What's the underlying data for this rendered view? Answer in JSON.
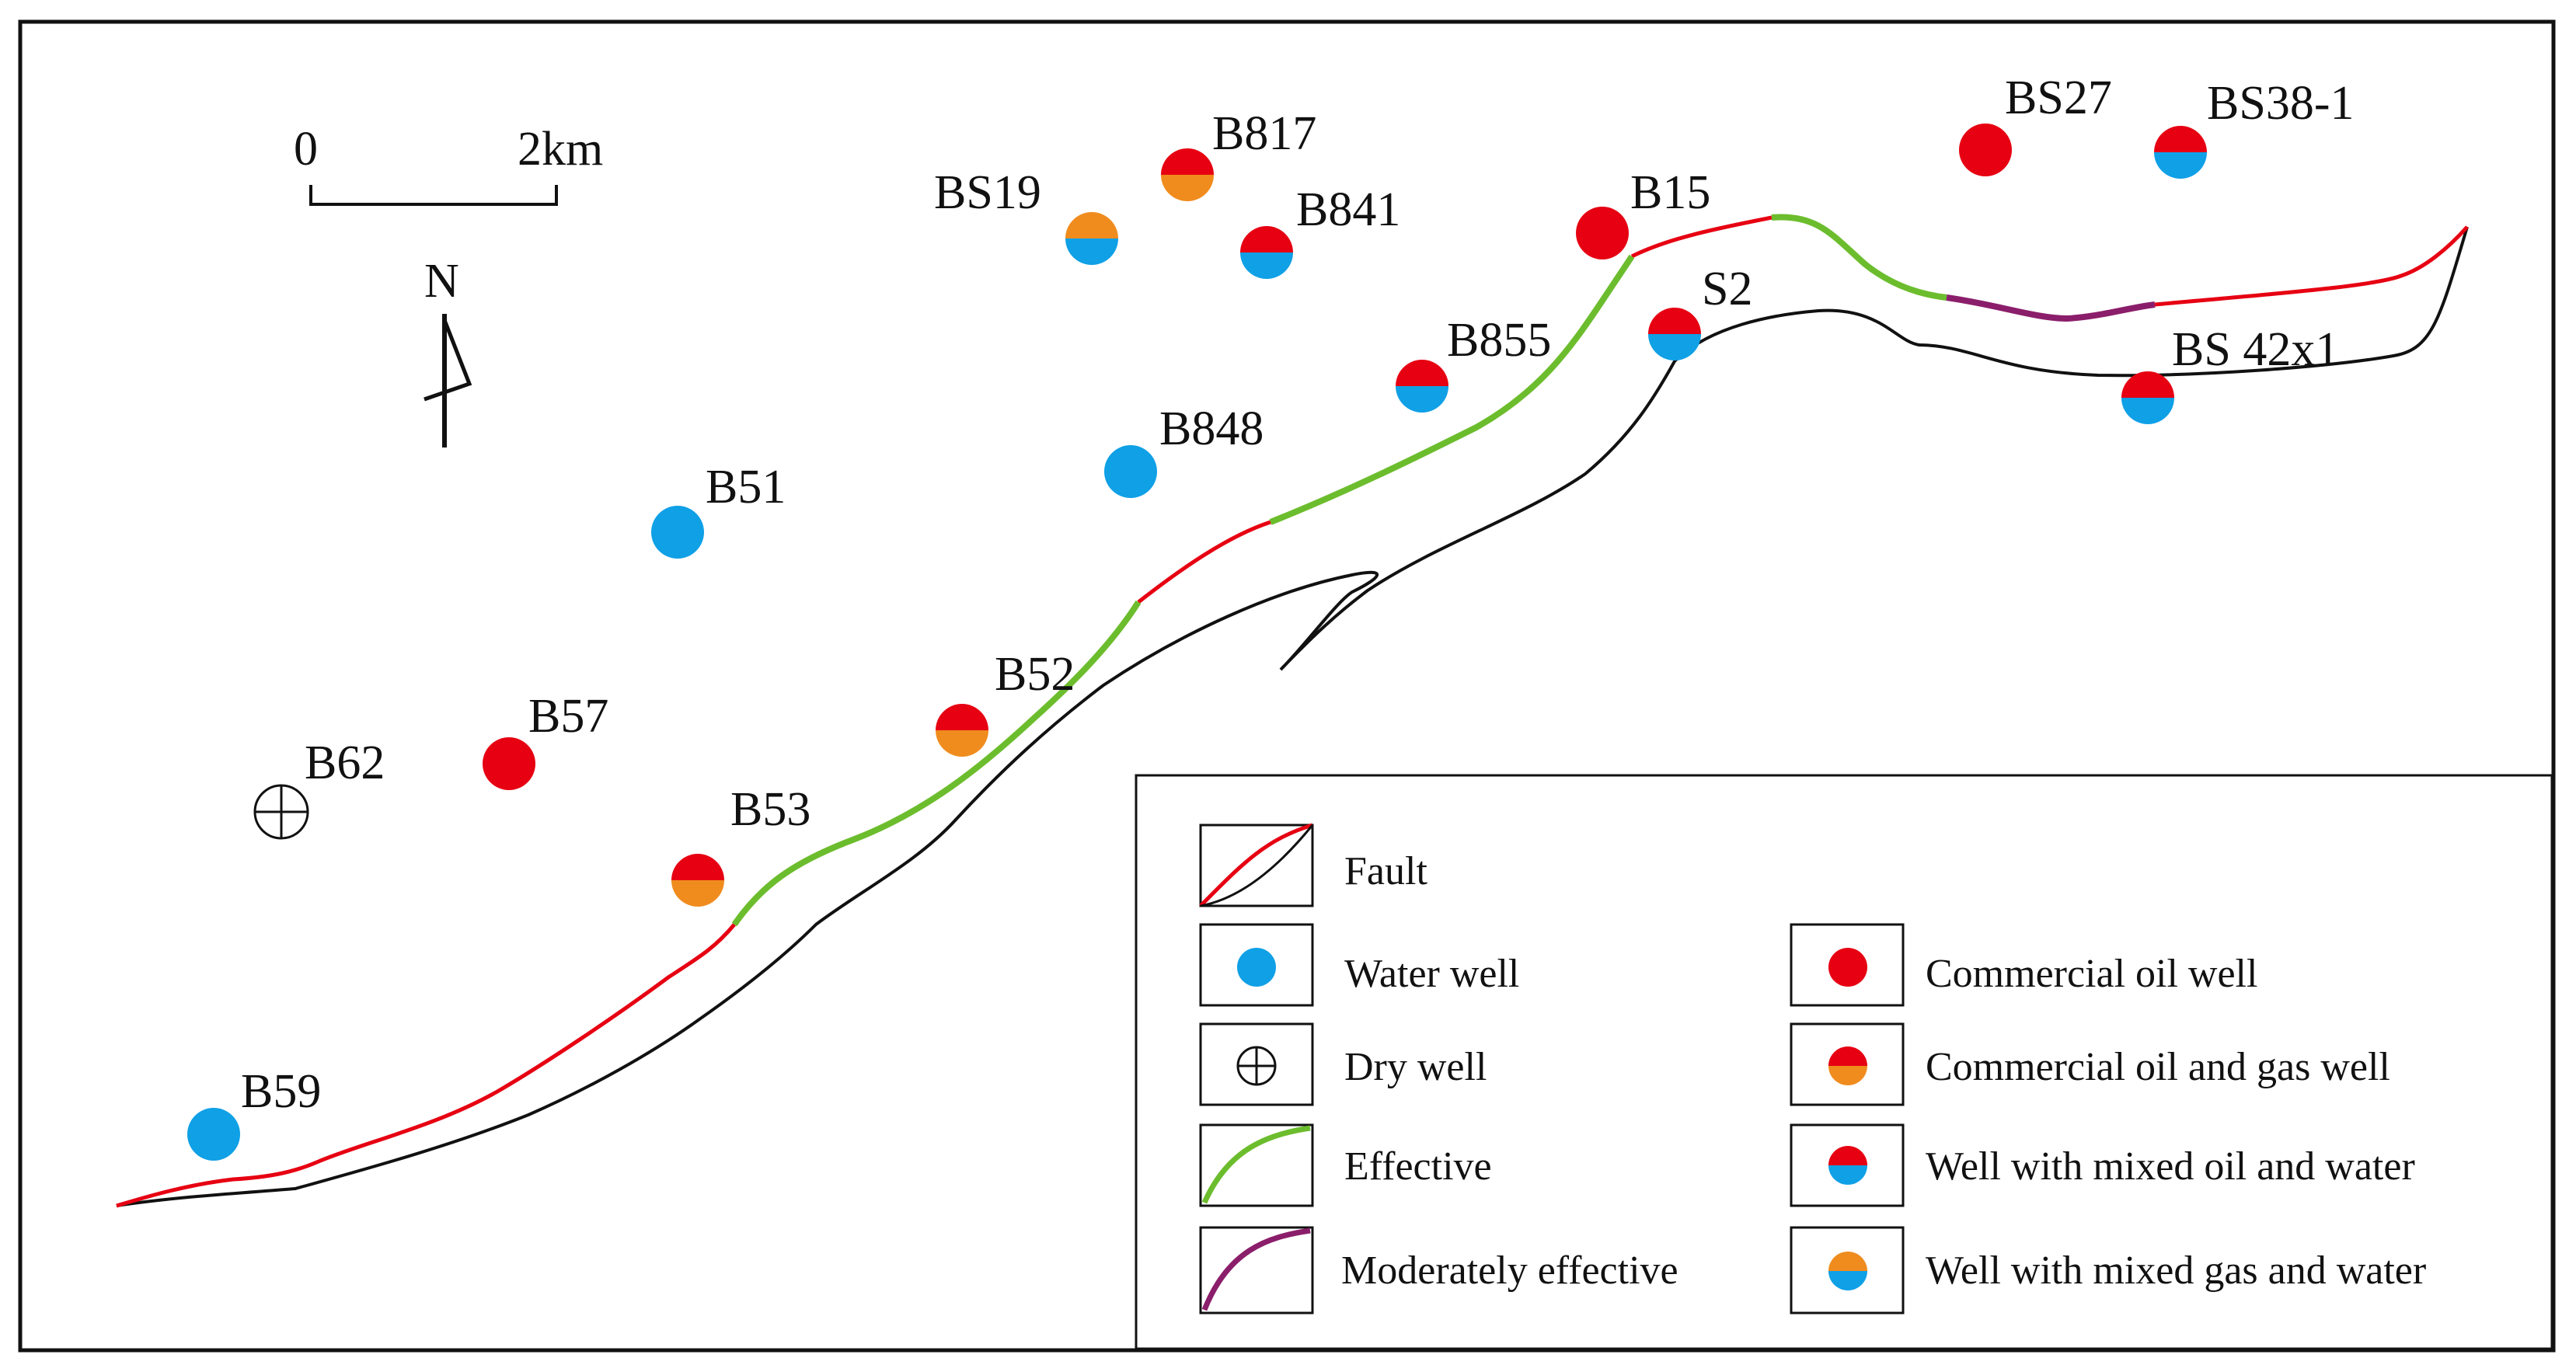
{
  "colors": {
    "oil": "#e60012",
    "water": "#0fa0e6",
    "gas": "#f08c1e",
    "effective": "#6cbd2d",
    "moderately_effective": "#8b1e6b",
    "fault": "#e60012",
    "line": "#111111"
  },
  "scale_bar": {
    "start_label": "0",
    "end_label": "2km"
  },
  "north_arrow": {
    "label": "N"
  },
  "wells": [
    {
      "name": "B817",
      "type": "oil_gas"
    },
    {
      "name": "BS19",
      "type": "gas_water"
    },
    {
      "name": "B841",
      "type": "oil_water"
    },
    {
      "name": "B15",
      "type": "oil"
    },
    {
      "name": "BS27",
      "type": "oil"
    },
    {
      "name": "BS38-1",
      "type": "oil_water"
    },
    {
      "name": "S2",
      "type": "oil_water"
    },
    {
      "name": "B855",
      "type": "oil_water"
    },
    {
      "name": "BS 42x1",
      "type": "oil_water"
    },
    {
      "name": "B848",
      "type": "water"
    },
    {
      "name": "B51",
      "type": "water"
    },
    {
      "name": "B52",
      "type": "oil_gas"
    },
    {
      "name": "B57",
      "type": "oil"
    },
    {
      "name": "B62",
      "type": "dry"
    },
    {
      "name": "B53",
      "type": "oil_gas"
    },
    {
      "name": "B59",
      "type": "water"
    }
  ],
  "legend": {
    "fault": "Fault",
    "water_well": "Water well",
    "dry_well": "Dry well",
    "effective": "Effective",
    "moderately_effective": "Moderately effective",
    "commercial_oil_well": "Commercial oil well",
    "commercial_oil_gas_well": "Commercial oil and gas well",
    "mixed_oil_water": "Well with mixed oil and water",
    "mixed_gas_water": "Well with mixed gas and water"
  }
}
